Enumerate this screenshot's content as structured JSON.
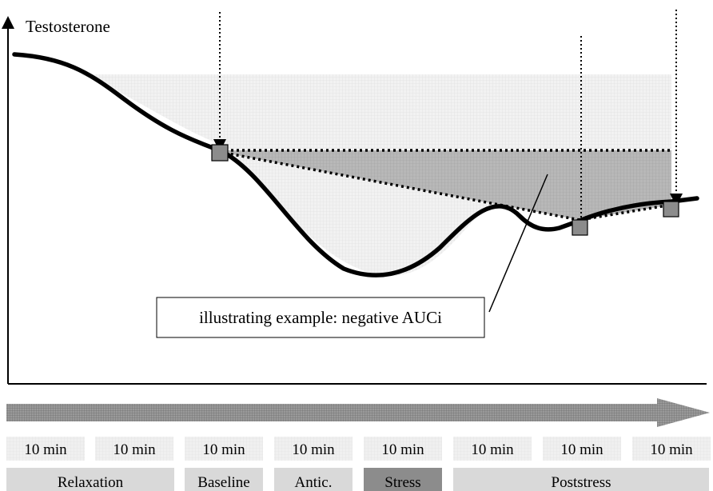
{
  "diagram": {
    "y_axis_label": "Testosterone",
    "annotation": "illustrating example: negative AUCi",
    "time_segments": [
      "10 min",
      "10 min",
      "10 min",
      "10 min",
      "10 min",
      "10 min",
      "10 min",
      "10 min"
    ],
    "phases": [
      {
        "label": "Relaxation",
        "color": "#d9d9d9"
      },
      {
        "label": "Baseline",
        "color": "#d9d9d9"
      },
      {
        "label": "Antic.",
        "color": "#d9d9d9"
      },
      {
        "label": "Stress",
        "color": "#8c8c8c"
      },
      {
        "label": "Poststress",
        "color": "#d9d9d9"
      }
    ],
    "colors": {
      "curve": "#000000",
      "marker": "#8c8c8c",
      "auc_region": "#b3b3b3",
      "light_region": "#ececec",
      "segment_box": "#ebebeb"
    }
  }
}
